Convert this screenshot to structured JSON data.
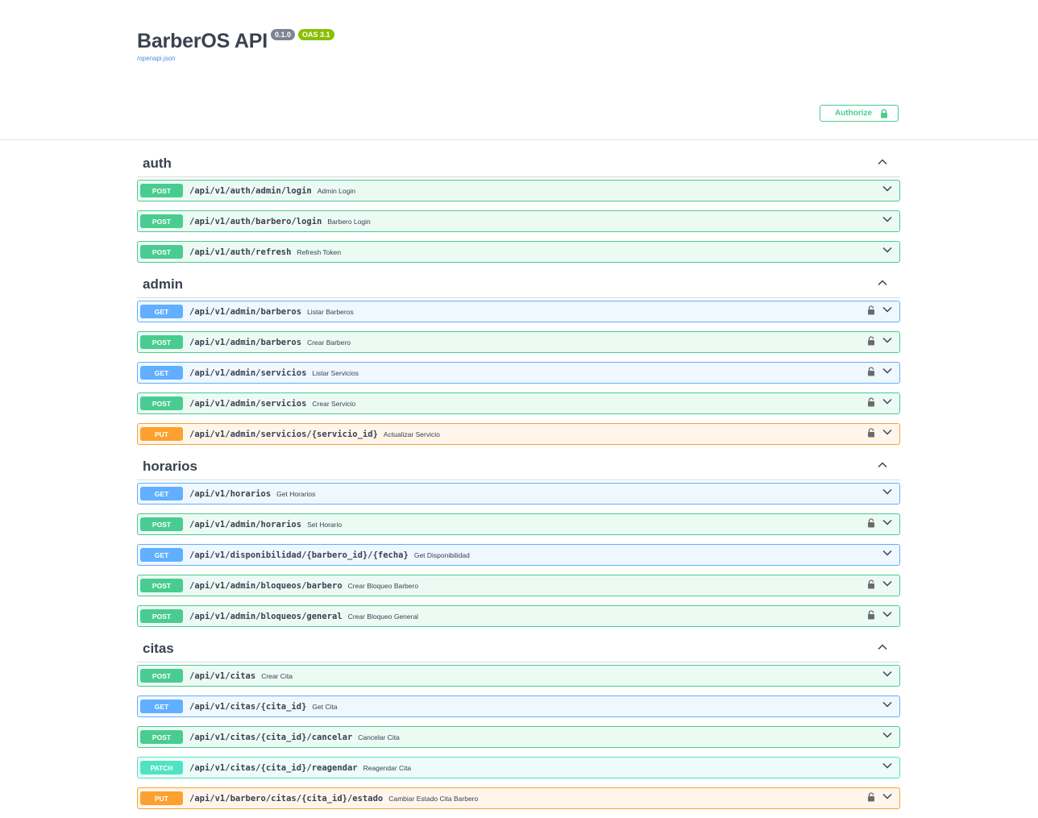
{
  "info": {
    "title": "BarberOS API",
    "version": "0.1.0",
    "oas": "OAS 3.1",
    "spec_link": "/openapi.json"
  },
  "authorize": {
    "label": "Authorize"
  },
  "colors": {
    "post": "#49cc90",
    "get": "#61affe",
    "put": "#fca130",
    "patch": "#50e3c2"
  },
  "sections": [
    {
      "name": "auth",
      "ops": [
        {
          "method": "POST",
          "path": "/api/v1/auth/admin/login",
          "summary": "Admin Login",
          "locked": false
        },
        {
          "method": "POST",
          "path": "/api/v1/auth/barbero/login",
          "summary": "Barbero Login",
          "locked": false
        },
        {
          "method": "POST",
          "path": "/api/v1/auth/refresh",
          "summary": "Refresh Token",
          "locked": false
        }
      ]
    },
    {
      "name": "admin",
      "ops": [
        {
          "method": "GET",
          "path": "/api/v1/admin/barberos",
          "summary": "Listar Barberos",
          "locked": true
        },
        {
          "method": "POST",
          "path": "/api/v1/admin/barberos",
          "summary": "Crear Barbero",
          "locked": true
        },
        {
          "method": "GET",
          "path": "/api/v1/admin/servicios",
          "summary": "Listar Servicios",
          "locked": true
        },
        {
          "method": "POST",
          "path": "/api/v1/admin/servicios",
          "summary": "Crear Servicio",
          "locked": true
        },
        {
          "method": "PUT",
          "path": "/api/v1/admin/servicios/{servicio_id}",
          "summary": "Actualizar Servicio",
          "locked": true
        }
      ]
    },
    {
      "name": "horarios",
      "ops": [
        {
          "method": "GET",
          "path": "/api/v1/horarios",
          "summary": "Get Horarios",
          "locked": false
        },
        {
          "method": "POST",
          "path": "/api/v1/admin/horarios",
          "summary": "Set Horario",
          "locked": true
        },
        {
          "method": "GET",
          "path": "/api/v1/disponibilidad/{barbero_id}/{fecha}",
          "summary": "Get Disponibilidad",
          "locked": false
        },
        {
          "method": "POST",
          "path": "/api/v1/admin/bloqueos/barbero",
          "summary": "Crear Bloqueo Barbero",
          "locked": true
        },
        {
          "method": "POST",
          "path": "/api/v1/admin/bloqueos/general",
          "summary": "Crear Bloqueo General",
          "locked": true
        }
      ]
    },
    {
      "name": "citas",
      "ops": [
        {
          "method": "POST",
          "path": "/api/v1/citas",
          "summary": "Crear Cita",
          "locked": false
        },
        {
          "method": "GET",
          "path": "/api/v1/citas/{cita_id}",
          "summary": "Get Cita",
          "locked": false
        },
        {
          "method": "POST",
          "path": "/api/v1/citas/{cita_id}/cancelar",
          "summary": "Cancelar Cita",
          "locked": false
        },
        {
          "method": "PATCH",
          "path": "/api/v1/citas/{cita_id}/reagendar",
          "summary": "Reagendar Cita",
          "locked": false
        },
        {
          "method": "PUT",
          "path": "/api/v1/barbero/citas/{cita_id}/estado",
          "summary": "Cambiar Estado Cita Barbero",
          "locked": true
        }
      ]
    }
  ]
}
